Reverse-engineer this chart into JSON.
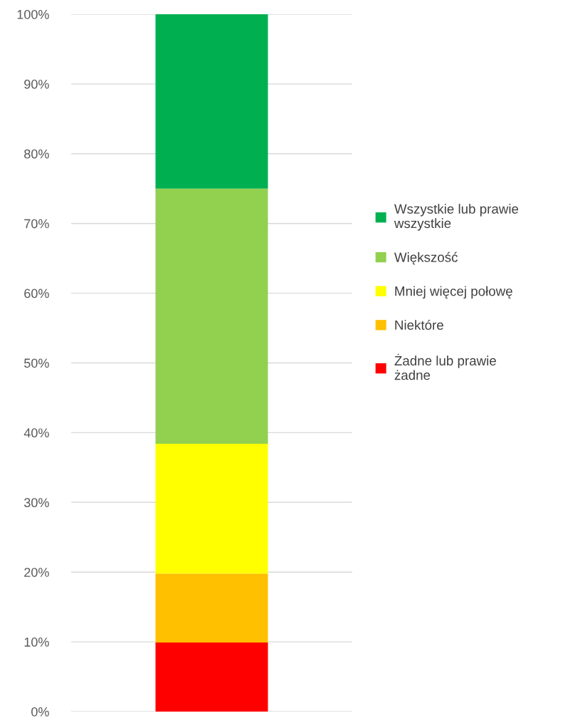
{
  "chart_data": {
    "type": "bar",
    "stacked": true,
    "categories": [
      null
    ],
    "series": [
      {
        "name": "Żadne lub prawie żadne",
        "color": "#ff0000",
        "values": [
          9.9
        ]
      },
      {
        "name": "Niektóre",
        "color": "#ffc000",
        "values": [
          9.9
        ]
      },
      {
        "name": "Mniej więcej połowę",
        "color": "#ffff00",
        "values": [
          18.6
        ]
      },
      {
        "name": "Większość",
        "color": "#92d050",
        "values": [
          36.6
        ]
      },
      {
        "name": "Wszystkie lub prawie wszystkie",
        "color": "#00b050",
        "values": [
          25.0
        ]
      }
    ],
    "ylim": [
      0,
      100
    ],
    "yticks": [
      {
        "value": 0,
        "label": "0%"
      },
      {
        "value": 10,
        "label": "10%"
      },
      {
        "value": 20,
        "label": "20%"
      },
      {
        "value": 30,
        "label": "30%"
      },
      {
        "value": 40,
        "label": "40%"
      },
      {
        "value": 50,
        "label": "50%"
      },
      {
        "value": 60,
        "label": "60%"
      },
      {
        "value": 70,
        "label": "70%"
      },
      {
        "value": 80,
        "label": "80%"
      },
      {
        "value": 90,
        "label": "90%"
      },
      {
        "value": 100,
        "label": "100%"
      }
    ],
    "grid": "y",
    "legend": "right"
  }
}
